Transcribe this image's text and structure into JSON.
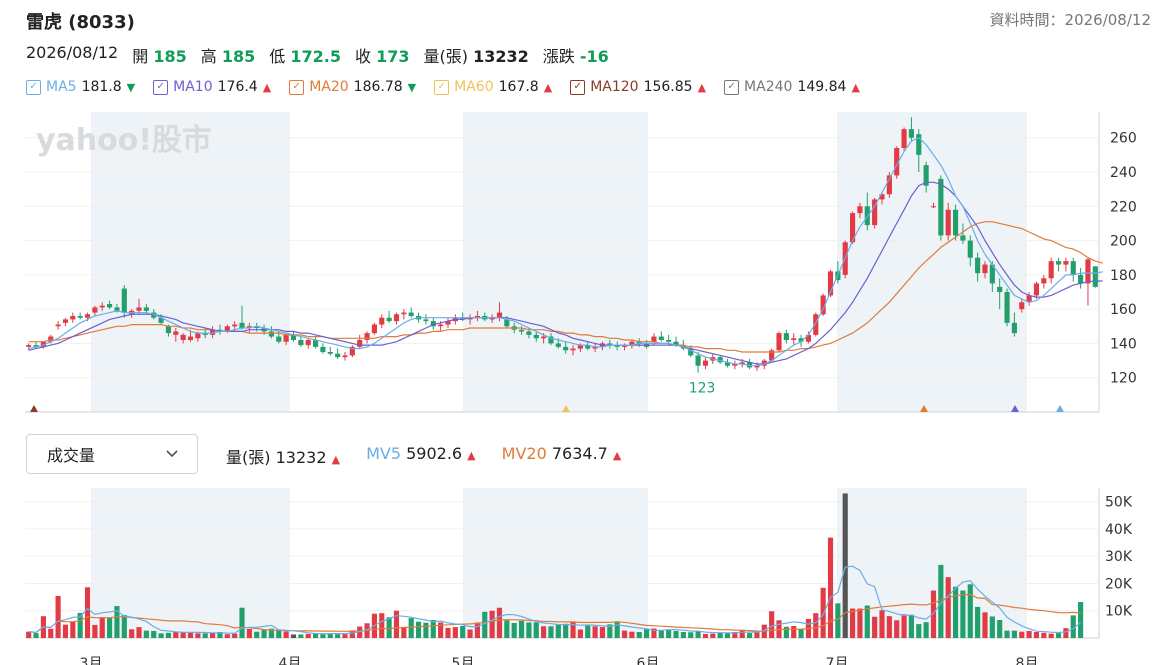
{
  "header": {
    "title": "雷虎 (8033)",
    "data_time": "資料時間：2026/08/12"
  },
  "quote": {
    "date": "2026/08/12",
    "open_label": "開",
    "open": "185",
    "high_label": "高",
    "high": "185",
    "low_label": "低",
    "low": "172.5",
    "close_label": "收",
    "close": "173",
    "vol_label": "量(張)",
    "vol": "13232",
    "chg_label": "漲跌",
    "chg": "-16"
  },
  "ma_legend": [
    {
      "name": "MA5",
      "value": "181.8",
      "dir": "down",
      "color": "#6aaee8"
    },
    {
      "name": "MA10",
      "value": "176.4",
      "dir": "up",
      "color": "#6c5fd1"
    },
    {
      "name": "MA20",
      "value": "186.78",
      "dir": "down",
      "color": "#e07b3a"
    },
    {
      "name": "MA60",
      "value": "167.8",
      "dir": "up",
      "color": "#f0c25a"
    },
    {
      "name": "MA120",
      "value": "156.85",
      "dir": "up",
      "color": "#8b3a2a"
    },
    {
      "name": "MA240",
      "value": "149.84",
      "dir": "up",
      "color": "#777777"
    }
  ],
  "arrows": {
    "up": "▲",
    "down": "▼"
  },
  "watermark": "yahoo!股市",
  "volume_panel": {
    "selector": "成交量",
    "vol_label": "量(張)",
    "vol_value": "13232",
    "mv5_label": "MV5",
    "mv5_value": "5902.6",
    "mv20_label": "MV20",
    "mv20_value": "7634.7"
  },
  "chart_data": {
    "type": "candlestick",
    "months": [
      "3月",
      "4月",
      "5月",
      "6月",
      "7月",
      "8月"
    ],
    "price_ylim": [
      100,
      275
    ],
    "price_ticks": [
      "120",
      "140",
      "160",
      "180",
      "200",
      "220",
      "240",
      "260"
    ],
    "annotations": {
      "high": "272",
      "low": "123"
    },
    "volume_ylim": [
      0,
      55000
    ],
    "volume_ticks": [
      "10K",
      "20K",
      "30K",
      "40K",
      "50K"
    ],
    "candles": [
      [
        138,
        140,
        136,
        139
      ],
      [
        139,
        141,
        137,
        138
      ],
      [
        138,
        141,
        137,
        141
      ],
      [
        141,
        145,
        140,
        144
      ],
      [
        150,
        153,
        148,
        151
      ],
      [
        152,
        155,
        150,
        154
      ],
      [
        154,
        158,
        152,
        156
      ],
      [
        156,
        158,
        154,
        155
      ],
      [
        155,
        158,
        153,
        157
      ],
      [
        158,
        162,
        156,
        161
      ],
      [
        161,
        164,
        159,
        162
      ],
      [
        163,
        165,
        160,
        161
      ],
      [
        161,
        163,
        158,
        159
      ],
      [
        172,
        174,
        155,
        158
      ],
      [
        157,
        160,
        155,
        159
      ],
      [
        159,
        166,
        157,
        161
      ],
      [
        161,
        163,
        157,
        159
      ],
      [
        158,
        160,
        154,
        155
      ],
      [
        155,
        157,
        151,
        152
      ],
      [
        150,
        151,
        144,
        146
      ],
      [
        145,
        149,
        141,
        147
      ],
      [
        142,
        146,
        140,
        145
      ],
      [
        142,
        148,
        141,
        144
      ],
      [
        143,
        147,
        141,
        146
      ],
      [
        146,
        149,
        143,
        145
      ],
      [
        145,
        150,
        143,
        148
      ],
      [
        148,
        151,
        145,
        147
      ],
      [
        147,
        151,
        146,
        150
      ],
      [
        150,
        153,
        147,
        151
      ],
      [
        152,
        162,
        148,
        149
      ],
      [
        149,
        152,
        146,
        150
      ],
      [
        150,
        152,
        147,
        149
      ],
      [
        149,
        151,
        145,
        147
      ],
      [
        147,
        150,
        143,
        144
      ],
      [
        144,
        147,
        140,
        141
      ],
      [
        141,
        146,
        139,
        145
      ],
      [
        145,
        147,
        141,
        142
      ],
      [
        142,
        144,
        138,
        139
      ],
      [
        139,
        143,
        137,
        142
      ],
      [
        142,
        144,
        137,
        138
      ],
      [
        138,
        140,
        134,
        135
      ],
      [
        135,
        138,
        133,
        134
      ],
      [
        134,
        137,
        131,
        132
      ],
      [
        132,
        135,
        130,
        133
      ],
      [
        133,
        139,
        132,
        138
      ],
      [
        138,
        145,
        137,
        142
      ],
      [
        142,
        147,
        140,
        146
      ],
      [
        146,
        152,
        145,
        151
      ],
      [
        151,
        157,
        149,
        155
      ],
      [
        155,
        159,
        152,
        153
      ],
      [
        153,
        158,
        151,
        157
      ],
      [
        157,
        160,
        154,
        158
      ],
      [
        158,
        161,
        155,
        156
      ],
      [
        156,
        158,
        152,
        154
      ],
      [
        154,
        157,
        151,
        153
      ],
      [
        153,
        155,
        148,
        150
      ],
      [
        150,
        153,
        147,
        151
      ],
      [
        151,
        155,
        149,
        153
      ],
      [
        153,
        157,
        151,
        155
      ],
      [
        155,
        158,
        153,
        154
      ],
      [
        154,
        157,
        151,
        155
      ],
      [
        155,
        159,
        153,
        156
      ],
      [
        156,
        158,
        153,
        154
      ],
      [
        154,
        157,
        152,
        155
      ],
      [
        155,
        164,
        153,
        158
      ],
      [
        154,
        156,
        149,
        150
      ],
      [
        150,
        152,
        146,
        148
      ],
      [
        148,
        150,
        145,
        147
      ],
      [
        147,
        149,
        143,
        145
      ],
      [
        145,
        147,
        141,
        143
      ],
      [
        143,
        146,
        140,
        144
      ],
      [
        144,
        146,
        139,
        140
      ],
      [
        140,
        143,
        137,
        138
      ],
      [
        138,
        141,
        134,
        136
      ],
      [
        136,
        139,
        133,
        137
      ],
      [
        137,
        140,
        135,
        139
      ],
      [
        139,
        141,
        136,
        137
      ],
      [
        137,
        140,
        135,
        138
      ],
      [
        138,
        141,
        136,
        140
      ],
      [
        140,
        142,
        137,
        139
      ],
      [
        139,
        141,
        136,
        138
      ],
      [
        138,
        140,
        136,
        139
      ],
      [
        139,
        142,
        137,
        141
      ],
      [
        141,
        143,
        138,
        140
      ],
      [
        140,
        142,
        137,
        138
      ],
      [
        141,
        146,
        139,
        144
      ],
      [
        144,
        147,
        141,
        142
      ],
      [
        142,
        145,
        139,
        141
      ],
      [
        141,
        144,
        138,
        139
      ],
      [
        139,
        142,
        136,
        137
      ],
      [
        137,
        139,
        132,
        133
      ],
      [
        133,
        135,
        123,
        127
      ],
      [
        127,
        132,
        125,
        130
      ],
      [
        130,
        134,
        128,
        132
      ],
      [
        132,
        133,
        128,
        129
      ],
      [
        129,
        131,
        126,
        127
      ],
      [
        127,
        130,
        125,
        128
      ],
      [
        128,
        131,
        126,
        129
      ],
      [
        129,
        131,
        125,
        126
      ],
      [
        126,
        129,
        124,
        127
      ],
      [
        127,
        131,
        125,
        130
      ],
      [
        130,
        137,
        129,
        136
      ],
      [
        136,
        147,
        135,
        146
      ],
      [
        146,
        148,
        140,
        142
      ],
      [
        142,
        146,
        139,
        143
      ],
      [
        143,
        145,
        138,
        141
      ],
      [
        141,
        147,
        140,
        145
      ],
      [
        145,
        158,
        144,
        157
      ],
      [
        157,
        169,
        156,
        168
      ],
      [
        168,
        183,
        167,
        182
      ],
      [
        182,
        188,
        175,
        177
      ],
      [
        180,
        200,
        178,
        199
      ],
      [
        199,
        217,
        198,
        216
      ],
      [
        216,
        222,
        213,
        220
      ],
      [
        220,
        228,
        206,
        209
      ],
      [
        209,
        225,
        207,
        224
      ],
      [
        224,
        228,
        221,
        227
      ],
      [
        227,
        240,
        225,
        238
      ],
      [
        238,
        255,
        236,
        254
      ],
      [
        254,
        266,
        252,
        265
      ],
      [
        265,
        272,
        258,
        260
      ],
      [
        262,
        265,
        240,
        250
      ],
      [
        244,
        246,
        228,
        232
      ],
      [
        220,
        222,
        219,
        220
      ],
      [
        236,
        238,
        200,
        203
      ],
      [
        203,
        222,
        200,
        218
      ],
      [
        218,
        221,
        200,
        203
      ],
      [
        203,
        210,
        198,
        200
      ],
      [
        200,
        203,
        185,
        190
      ],
      [
        190,
        193,
        176,
        181
      ],
      [
        181,
        188,
        178,
        186
      ],
      [
        186,
        188,
        170,
        175
      ],
      [
        173,
        178,
        160,
        170
      ],
      [
        170,
        172,
        150,
        152
      ],
      [
        152,
        158,
        144,
        146
      ],
      [
        160,
        166,
        158,
        164
      ],
      [
        164,
        170,
        162,
        168
      ],
      [
        168,
        176,
        166,
        175
      ],
      [
        175,
        180,
        172,
        178
      ],
      [
        178,
        190,
        175,
        188
      ],
      [
        188,
        190,
        182,
        186
      ],
      [
        186,
        190,
        182,
        188
      ],
      [
        188,
        190,
        176,
        180
      ],
      [
        180,
        184,
        172,
        175
      ],
      [
        175,
        190,
        162,
        189
      ],
      [
        185,
        185,
        172.5,
        173
      ]
    ],
    "volumes": [
      2300,
      1800,
      8000,
      3400,
      15400,
      4900,
      6000,
      9200,
      18600,
      4800,
      7600,
      7400,
      11700,
      8400,
      3200,
      4000,
      2700,
      2600,
      1700,
      1900,
      2400,
      2100,
      2100,
      1700,
      1700,
      1900,
      2200,
      1400,
      1600,
      11100,
      3300,
      2300,
      3000,
      3400,
      3100,
      2400,
      1300,
      1300,
      1500,
      1700,
      1700,
      1800,
      1400,
      1400,
      2800,
      4200,
      5400,
      8900,
      9100,
      7600,
      10000,
      4100,
      7300,
      6000,
      5600,
      6600,
      5700,
      3700,
      4000,
      4400,
      3100,
      5700,
      9600,
      10000,
      11100,
      6500,
      5500,
      6300,
      5700,
      5700,
      4300,
      4300,
      4800,
      5200,
      6000,
      3100,
      4800,
      4300,
      4000,
      5000,
      6100,
      2700,
      2300,
      2200,
      3400,
      3500,
      2800,
      3200,
      2600,
      2200,
      2100,
      2500,
      1500,
      1600,
      2000,
      1800,
      2200,
      3000,
      1800,
      2100,
      4900,
      9800,
      6500,
      4100,
      4400,
      3400,
      7000,
      9100,
      18400,
      36800,
      12700,
      53000,
      10800,
      10800,
      11900,
      7800,
      10200,
      8000,
      6500,
      8700,
      8500,
      5100,
      5800,
      17400,
      26800,
      22300,
      18800,
      17400,
      19700,
      11400,
      9400,
      7900,
      6600,
      2700,
      2700,
      2300,
      2600,
      2200,
      1900,
      1600,
      1800,
      3600,
      8300,
      13200
    ],
    "ma5": [
      137,
      138,
      139,
      141,
      143,
      146,
      149,
      152,
      154,
      156,
      157,
      158,
      159,
      158,
      158,
      158,
      158,
      157,
      155,
      153,
      151,
      149,
      147,
      146,
      146,
      146,
      147,
      147,
      148,
      149,
      149,
      150,
      149,
      148,
      147,
      146,
      145,
      144,
      143,
      142,
      141,
      140,
      139,
      138,
      137,
      137,
      138,
      140,
      143,
      146,
      149,
      152,
      154,
      155,
      155,
      155,
      155,
      155,
      155,
      155,
      155,
      155,
      155,
      155,
      155,
      154,
      153,
      151,
      149,
      147,
      145,
      143,
      142,
      141,
      140,
      139,
      139,
      138,
      138,
      139,
      139,
      139,
      139,
      140,
      140,
      140,
      140,
      140,
      139,
      138,
      136,
      134,
      132,
      131,
      130,
      129,
      128,
      128,
      127,
      127,
      128,
      130,
      133,
      136,
      139,
      141,
      145,
      152,
      160,
      170,
      180,
      190,
      200,
      208,
      214,
      220,
      228,
      236,
      244,
      252,
      258,
      260,
      256,
      250,
      244,
      236,
      226,
      220,
      210,
      200,
      192,
      186,
      180,
      174,
      168,
      166,
      164,
      165,
      168,
      172,
      176,
      180,
      180,
      181,
      181,
      181,
      181.8
    ],
    "ma10": [
      136,
      137,
      138,
      139,
      140,
      142,
      144,
      146,
      148,
      150,
      152,
      154,
      155,
      156,
      157,
      157,
      157,
      157,
      156,
      155,
      154,
      152,
      151,
      150,
      149,
      148,
      147,
      147,
      147,
      147,
      148,
      148,
      148,
      148,
      148,
      147,
      147,
      146,
      146,
      145,
      144,
      143,
      142,
      141,
      140,
      139,
      139,
      139,
      139,
      140,
      141,
      143,
      145,
      147,
      149,
      151,
      152,
      153,
      154,
      154,
      155,
      155,
      155,
      155,
      155,
      155,
      154,
      153,
      152,
      151,
      150,
      148,
      146,
      145,
      143,
      142,
      141,
      140,
      139,
      139,
      139,
      139,
      139,
      139,
      139,
      139,
      139,
      139,
      139,
      138,
      137,
      136,
      135,
      134,
      133,
      132,
      131,
      130,
      129,
      128,
      128,
      129,
      130,
      131,
      133,
      135,
      137,
      140,
      144,
      148,
      153,
      158,
      164,
      171,
      178,
      186,
      194,
      202,
      210,
      218,
      226,
      232,
      234,
      234,
      233,
      230,
      226,
      220,
      214,
      208,
      200,
      193,
      186,
      180,
      174,
      170,
      168,
      167,
      167,
      168,
      170,
      172,
      174,
      175,
      176,
      176.4,
      176.4
    ],
    "ma20": [
      141,
      141,
      141,
      142,
      142,
      143,
      144,
      145,
      146,
      147,
      148,
      149,
      150,
      150,
      151,
      151,
      151,
      151,
      151,
      150,
      150,
      149,
      149,
      148,
      148,
      148,
      147,
      147,
      147,
      147,
      146,
      146,
      146,
      146,
      146,
      145,
      145,
      145,
      144,
      144,
      144,
      143,
      143,
      143,
      143,
      143,
      143,
      143,
      144,
      144,
      144,
      145,
      145,
      146,
      146,
      147,
      147,
      148,
      148,
      148,
      149,
      149,
      149,
      149,
      149,
      149,
      149,
      149,
      148,
      148,
      148,
      147,
      147,
      146,
      146,
      145,
      145,
      144,
      144,
      143,
      143,
      142,
      142,
      141,
      141,
      141,
      140,
      140,
      139,
      139,
      138,
      138,
      137,
      137,
      137,
      136,
      136,
      135,
      135,
      135,
      135,
      135,
      135,
      136,
      136,
      137,
      137,
      138,
      139,
      140,
      142,
      144,
      146,
      149,
      152,
      156,
      160,
      164,
      169,
      174,
      179,
      184,
      188,
      192,
      196,
      199,
      202,
      205,
      208,
      210,
      211,
      211,
      210,
      209,
      208,
      207,
      205,
      203,
      201,
      200,
      198,
      196,
      195,
      193,
      190,
      188,
      186.78
    ]
  }
}
